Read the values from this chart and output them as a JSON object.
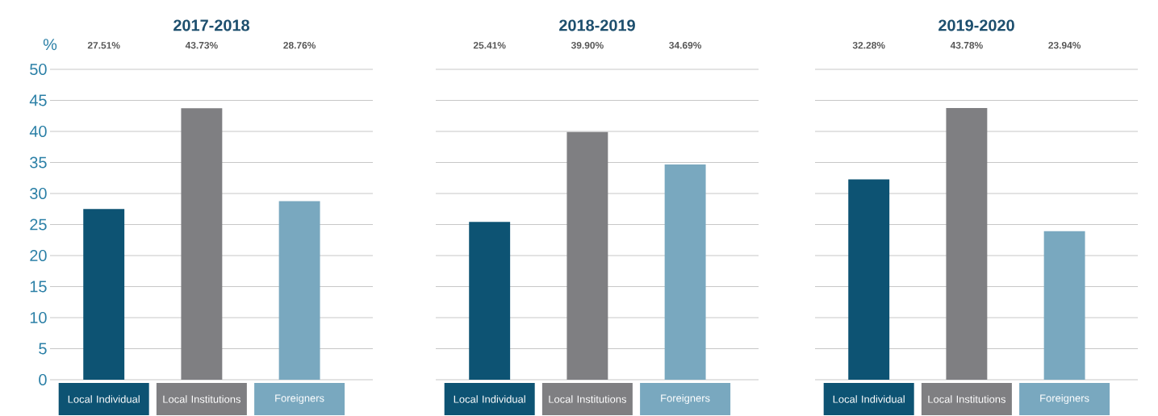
{
  "chart_data": [
    {
      "type": "bar",
      "title": "2017-2018",
      "ylabel": "%",
      "categories": [
        "Local Individual",
        "Local Institutions",
        "Foreigners"
      ],
      "values": [
        27.51,
        43.73,
        28.76
      ],
      "value_labels": [
        "27.51%",
        "43.73%",
        "28.76%"
      ],
      "colors": [
        "#0d5373",
        "#7f7f82",
        "#79a8bf"
      ],
      "ylim": [
        0,
        50
      ],
      "yticks": [
        0,
        5,
        10,
        15,
        20,
        25,
        30,
        35,
        40,
        45,
        50
      ],
      "grid": "y"
    },
    {
      "type": "bar",
      "title": "2018-2019",
      "categories": [
        "Local Individual",
        "Local Institutions",
        "Foreigners"
      ],
      "values": [
        25.41,
        39.9,
        34.69
      ],
      "value_labels": [
        "25.41%",
        "39.90%",
        "34.69%"
      ],
      "colors": [
        "#0d5373",
        "#7f7f82",
        "#79a8bf"
      ],
      "ylim": [
        0,
        50
      ],
      "yticks": [
        0,
        5,
        10,
        15,
        20,
        25,
        30,
        35,
        40,
        45,
        50
      ],
      "grid": "y",
      "tick_labels": "x"
    },
    {
      "type": "bar",
      "title": "2019-2020",
      "categories": [
        "Local Individual",
        "Local Institutions",
        "Foreigners"
      ],
      "values": [
        32.28,
        43.78,
        23.94
      ],
      "value_labels": [
        "32.28%",
        "43.78%",
        "23.94%"
      ],
      "colors": [
        "#0d5373",
        "#7f7f82",
        "#79a8bf"
      ],
      "ylim": [
        0,
        50
      ],
      "yticks": [
        0,
        5,
        10,
        15,
        20,
        25,
        30,
        35,
        40,
        45,
        50
      ],
      "grid": "y",
      "tick_labels": "x"
    }
  ]
}
